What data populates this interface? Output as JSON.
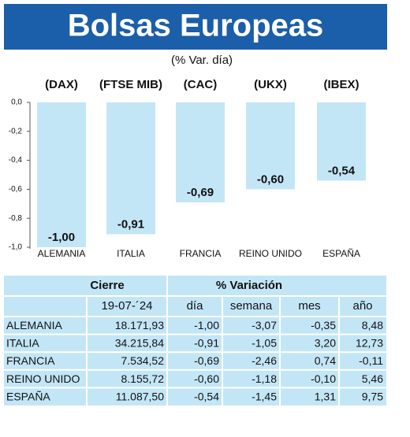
{
  "chart_data": {
    "type": "bar",
    "title": "Bolsas Europeas",
    "subtitle": "(% Var. día)",
    "indices": [
      "(DAX)",
      "(FTSE MIB)",
      "(CAC)",
      "(UKX)",
      "(IBEX)"
    ],
    "categories": [
      "ALEMANIA",
      "ITALIA",
      "FRANCIA",
      "REINO UNIDO",
      "ESPAÑA"
    ],
    "values": [
      -1.0,
      -0.91,
      -0.69,
      -0.6,
      -0.54
    ],
    "value_labels": [
      "-1,00",
      "-0,91",
      "-0,69",
      "-0,60",
      "-0,54"
    ],
    "color": "#c3e6f7",
    "ylim": [
      -1.0,
      0
    ],
    "yticks": [
      {
        "value": 0,
        "label": "0,0"
      },
      {
        "value": -0.2,
        "label": "-0,2"
      },
      {
        "value": -0.4,
        "label": "-0,4"
      },
      {
        "value": -0.6,
        "label": "-0,6"
      },
      {
        "value": -0.8,
        "label": "-0,8"
      },
      {
        "value": -1.0,
        "label": "-1,0"
      }
    ],
    "grid": false
  },
  "table": {
    "groups": [
      "Cierre",
      "% Variación"
    ],
    "date": "19-07-´24",
    "columns": [
      "día",
      "semana",
      "mes",
      "año"
    ],
    "rows": [
      [
        "ALEMANIA",
        "18.171,93",
        "-1,00",
        "-3,07",
        "-0,35",
        "8,48"
      ],
      [
        "ITALIA",
        "34.215,84",
        "-0,91",
        "-1,05",
        "3,20",
        "12,73"
      ],
      [
        "FRANCIA",
        "7.534,52",
        "-0,69",
        "-2,46",
        "0,74",
        "-0,11"
      ],
      [
        "REINO UNIDO",
        "8.155,72",
        "-0,60",
        "-1,18",
        "-0,10",
        "5,46"
      ],
      [
        "ESPAÑA",
        "11.087,50",
        "-0,54",
        "-1,45",
        "1,31",
        "9,75"
      ]
    ]
  }
}
